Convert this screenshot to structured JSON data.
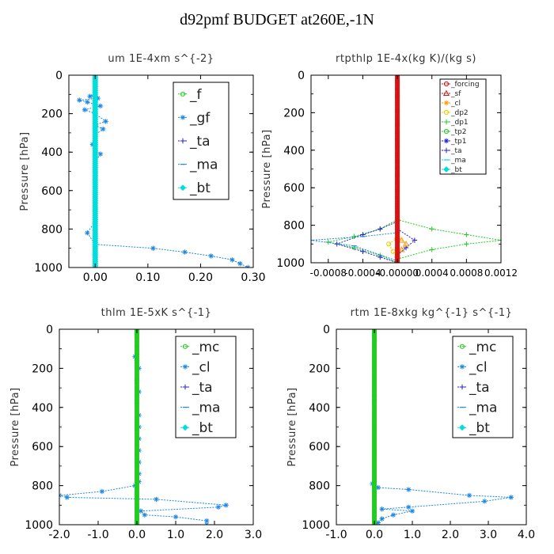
{
  "page_title": "d92pmf  BUDGET at260E,-1N",
  "colors": {
    "green": "#22cc22",
    "blue": "#1e88e5",
    "red": "#dd1111",
    "orange": "#ff9900",
    "yellow": "#e8d000",
    "navy": "#2222cc",
    "cyan": "#00dddd",
    "dark": "#000000"
  },
  "chart_data": [
    {
      "type": "line",
      "title": "um   1E-4xm s^{-2}",
      "ylabel": "Pressure [hPa]",
      "xlim": [
        -0.05,
        0.3
      ],
      "ylim": [
        1000,
        0
      ],
      "xticks": [
        0.0,
        0.1,
        0.2,
        0.3
      ],
      "xtick_labels": [
        "0.00",
        "0.10",
        "0.20",
        "0.30"
      ],
      "yticks": [
        0,
        200,
        400,
        600,
        800,
        1000
      ],
      "legend": [
        "_f",
        "_gf",
        "_ta",
        "_ma",
        "_bt"
      ],
      "series": [
        {
          "name": "_gf",
          "color": "blue",
          "marker": "star",
          "x": [
            0.0,
            -0.01,
            0.005,
            -0.03,
            -0.015,
            0.01,
            -0.02,
            0.0,
            0.02,
            0.0,
            0.015,
            0.0,
            -0.005,
            0.0,
            0.01,
            0.0,
            0.0,
            0.0,
            0.0,
            0.0,
            0.0,
            0.0,
            0.0,
            -0.015,
            0.0,
            0.11,
            0.17,
            0.22,
            0.26,
            0.275,
            0.29
          ],
          "y": [
            100,
            110,
            120,
            130,
            140,
            160,
            180,
            200,
            240,
            260,
            280,
            310,
            360,
            380,
            410,
            450,
            480,
            520,
            560,
            600,
            640,
            700,
            760,
            820,
            880,
            900,
            920,
            940,
            960,
            980,
            1000
          ]
        },
        {
          "name": "_f",
          "color": "green",
          "marker": "circle",
          "x": [
            0.0,
            0.0
          ],
          "y": [
            0,
            1000
          ]
        },
        {
          "name": "_bt",
          "color": "cyan",
          "marker": "diamond",
          "x": [
            0.0,
            0.0
          ],
          "y": [
            0,
            1000
          ]
        }
      ]
    },
    {
      "type": "line",
      "title": "rtpthlp   1E-4x(kg K)/(kg s)",
      "ylabel": "Pressure [hPa]",
      "xlim": [
        -0.001,
        0.0012
      ],
      "ylim": [
        1000,
        0
      ],
      "xticks": [
        -0.0008,
        -0.0004,
        0.0,
        0.0004,
        0.0008,
        0.0012
      ],
      "xtick_labels": [
        "-0.0008",
        "-0.0004",
        "-0.00000",
        "0.0004",
        "0.0008",
        "0.0012"
      ],
      "yticks": [
        0,
        200,
        400,
        600,
        800,
        1000
      ],
      "legend": [
        "_forcing",
        "_sf",
        "_cl",
        "_dp2",
        "_dp1",
        "_tp2",
        "_tp1",
        "_ta",
        "_ma",
        "_bt"
      ],
      "series": [
        {
          "name": "_dp1",
          "color": "green",
          "marker": "plus",
          "x": [
            0.0,
            0.0,
            0.0004,
            0.0008,
            0.0012,
            0.0008,
            0.0004,
            0.0,
            0.0
          ],
          "y": [
            0,
            770,
            820,
            850,
            880,
            900,
            930,
            980,
            1000
          ]
        },
        {
          "name": "_dp1",
          "color": "green",
          "marker": "plus",
          "x": [
            0.0,
            -0.0002,
            -0.0005,
            -0.0008,
            -0.0005,
            -0.0002,
            0.0
          ],
          "y": [
            770,
            820,
            860,
            890,
            920,
            960,
            1000
          ]
        },
        {
          "name": "_tp1",
          "color": "navy",
          "marker": "plus",
          "x": [
            0.0,
            -0.0002,
            -0.0004,
            -0.0007,
            -0.0004,
            -0.0002,
            0.0
          ],
          "y": [
            780,
            820,
            850,
            900,
            940,
            970,
            1000
          ]
        },
        {
          "name": "_ma",
          "color": "blue",
          "marker": "dash",
          "x": [
            0.0,
            -0.0004,
            -0.001,
            -0.0005,
            0.0
          ],
          "y": [
            840,
            860,
            880,
            910,
            990
          ]
        },
        {
          "name": "_ta",
          "color": "navy",
          "marker": "plus",
          "x": [
            0.0,
            0.0002,
            0.0001,
            0.0
          ],
          "y": [
            820,
            880,
            920,
            960
          ]
        },
        {
          "name": "_cl",
          "color": "orange",
          "marker": "triangle",
          "x": [
            0.0,
            5e-05,
            0.0001,
            5e-05,
            0.0
          ],
          "y": [
            860,
            880,
            900,
            930,
            960
          ]
        },
        {
          "name": "_dp2",
          "color": "yellow",
          "marker": "circle",
          "x": [
            0.0,
            -0.0001,
            -5e-05,
            0.0
          ],
          "y": [
            870,
            900,
            940,
            970
          ]
        },
        {
          "name": "_forcing",
          "color": "red",
          "marker": "circle",
          "x": [
            0.0,
            0.0
          ],
          "y": [
            0,
            1000
          ]
        }
      ]
    },
    {
      "type": "line",
      "title": "thlm   1E-5xK s^{-1}",
      "ylabel": "Pressure [hPa]",
      "xlim": [
        -2.0,
        3.0
      ],
      "ylim": [
        1000,
        0
      ],
      "xticks": [
        -2.0,
        -1.0,
        0.0,
        1.0,
        2.0,
        3.0
      ],
      "xtick_labels": [
        "-2.0",
        "-1.0",
        "0.0",
        "1.0",
        "2.0",
        "3.0"
      ],
      "yticks": [
        0,
        200,
        400,
        600,
        800,
        1000
      ],
      "legend": [
        "_mc",
        "_cl",
        "_ta",
        "_ma",
        "_bt"
      ],
      "series": [
        {
          "name": "_cl",
          "color": "blue",
          "marker": "star",
          "x": [
            0.0,
            -0.05,
            0.0,
            0.05,
            0.0,
            0.05,
            0.0,
            0.05,
            0.05,
            0.05,
            0.05,
            0.05,
            0.05,
            0.05,
            -0.05,
            -0.9,
            -2.0,
            -1.8,
            0.5,
            2.3,
            2.1,
            0.1,
            0.2,
            1.0,
            1.8,
            1.8
          ],
          "y": [
            130,
            140,
            160,
            200,
            260,
            320,
            380,
            440,
            500,
            560,
            620,
            680,
            740,
            780,
            800,
            830,
            850,
            860,
            870,
            900,
            910,
            930,
            950,
            960,
            980,
            1000
          ]
        },
        {
          "name": "_mc",
          "color": "green",
          "marker": "circle",
          "x": [
            0.0,
            0.0
          ],
          "y": [
            0,
            1000
          ]
        }
      ]
    },
    {
      "type": "line",
      "title": "rtm   1E-8xkg kg^{-1} s^{-1}",
      "ylabel": "Pressure [hPa]",
      "xlim": [
        -1.0,
        4.0
      ],
      "ylim": [
        1000,
        0
      ],
      "xticks": [
        -1.0,
        0.0,
        1.0,
        2.0,
        3.0,
        4.0
      ],
      "xtick_labels": [
        "-1.0",
        "0.0",
        "1.0",
        "2.0",
        "3.0",
        "4.0"
      ],
      "yticks": [
        0,
        200,
        400,
        600,
        800,
        1000
      ],
      "legend": [
        "_mc",
        "_cl",
        "_ta",
        "_ma",
        "_bt"
      ],
      "series": [
        {
          "name": "_cl",
          "color": "blue",
          "marker": "star",
          "x": [
            0.0,
            -0.05,
            0.0,
            0.1,
            0.9,
            2.5,
            3.6,
            2.9,
            0.9,
            0.2,
            1.0,
            0.5,
            0.2,
            0.1,
            0.0
          ],
          "y": [
            780,
            790,
            800,
            810,
            820,
            850,
            860,
            880,
            910,
            920,
            930,
            950,
            970,
            990,
            1000
          ]
        },
        {
          "name": "_mc",
          "color": "green",
          "marker": "circle",
          "x": [
            0.0,
            0.0
          ],
          "y": [
            0,
            1000
          ]
        }
      ]
    }
  ]
}
